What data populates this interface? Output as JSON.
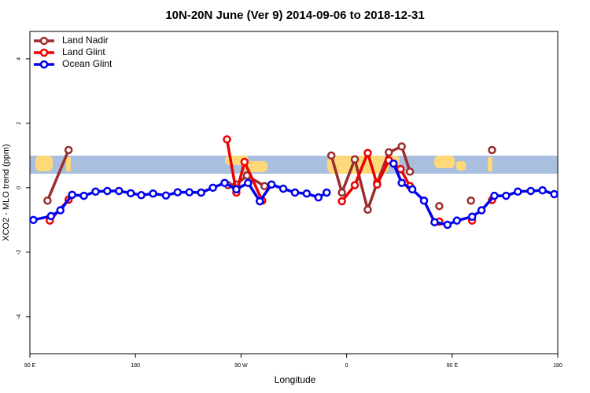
{
  "chart_data": {
    "type": "line",
    "title": "10N-20N June (Ver 9)   2014-09-06 to 2018-12-31",
    "xlabel": "Longitude",
    "ylabel": "XCO2 - MLO trend (ppm)",
    "xlim": [
      90,
      540
    ],
    "ylim": [
      -5.15,
      4.85
    ],
    "xticks": [
      {
        "value": 90,
        "label": "90 E"
      },
      180,
      {
        "value": 270,
        "label": "90 W"
      },
      {
        "value": 360,
        "label": "0"
      },
      {
        "value": 450,
        "label": "90 E"
      },
      {
        "value": 540,
        "label": "180"
      }
    ],
    "yticks": [
      -4,
      -2,
      0,
      2,
      4
    ],
    "legend": "top-left",
    "series": [
      {
        "name": "Land Nadir",
        "color": "#9b2d2d",
        "x": [
          105,
          123,
          190,
          259,
          266,
          275,
          290,
          300,
          347,
          356,
          367,
          378,
          386,
          396,
          407,
          414,
          420,
          439,
          450,
          466,
          475,
          484
        ],
        "values": [
          -0.4,
          1.17,
          null,
          0.08,
          0.1,
          0.38,
          0.05,
          null,
          1.0,
          -0.15,
          0.88,
          -0.68,
          0.15,
          1.1,
          1.28,
          0.5,
          null,
          -0.57,
          null,
          -0.4,
          null,
          1.17
        ]
      },
      {
        "name": "Land Glint",
        "color": "#ee0000",
        "x": [
          107,
          123,
          190,
          258,
          266,
          273,
          288,
          320,
          356,
          367,
          378,
          386,
          396,
          406,
          414,
          420,
          439,
          450,
          467,
          475,
          484
        ],
        "values": [
          -1.02,
          -0.37,
          null,
          1.5,
          -0.15,
          0.8,
          -0.4,
          null,
          -0.42,
          0.08,
          1.08,
          0.1,
          0.85,
          0.58,
          0.05,
          null,
          -1.05,
          null,
          -1.02,
          null,
          -0.38
        ]
      },
      {
        "name": "Ocean Glint",
        "color": "#0000ee",
        "x": [
          93,
          108,
          116,
          126,
          136,
          146,
          156,
          166,
          176,
          185,
          195,
          206,
          216,
          226,
          236,
          246,
          256,
          266,
          276,
          286,
          296,
          306,
          316,
          326,
          336,
          343,
          371,
          400,
          407,
          416,
          426,
          435,
          446,
          454,
          467,
          475,
          486,
          496,
          506,
          517,
          527,
          537
        ],
        "values": [
          -1.0,
          -0.88,
          -0.7,
          -0.22,
          -0.25,
          -0.12,
          -0.1,
          -0.1,
          -0.17,
          -0.23,
          -0.18,
          -0.24,
          -0.14,
          -0.14,
          -0.15,
          0.0,
          0.15,
          -0.05,
          0.15,
          -0.42,
          0.1,
          -0.03,
          -0.15,
          -0.18,
          -0.3,
          -0.15,
          null,
          0.75,
          0.15,
          -0.05,
          -0.4,
          -1.07,
          -1.15,
          -1.02,
          -0.9,
          -0.7,
          -0.25,
          -0.25,
          -0.12,
          -0.1,
          -0.08,
          -0.2
        ]
      }
    ]
  }
}
